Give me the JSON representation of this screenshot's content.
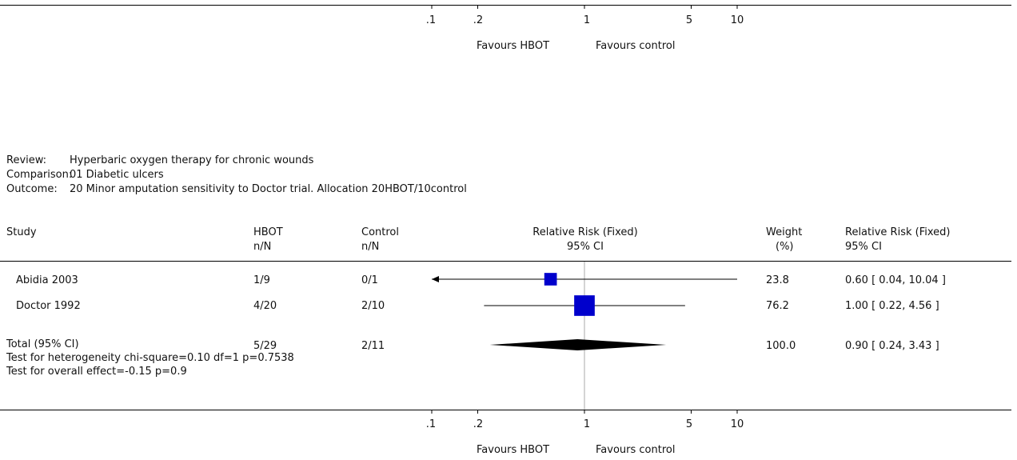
{
  "top_axis": {
    "ticks": [
      ".1",
      ".2",
      "1",
      "5",
      "10"
    ],
    "favours_left": "Favours HBOT",
    "favours_right": "Favours control"
  },
  "header": {
    "review_label": "Review:",
    "review_value": "Hyperbaric oxygen therapy for chronic wounds",
    "comparison_label": "Comparison:",
    "comparison_value": "01 Diabetic ulcers",
    "outcome_label": "Outcome:",
    "outcome_value": "20 Minor amputation sensitivity to Doctor trial. Allocation 20HBOT/10control"
  },
  "columns": {
    "study": "Study",
    "hbot": "HBOT",
    "hbot_sub": "n/N",
    "control": "Control",
    "control_sub": "n/N",
    "rr": "Relative Risk (Fixed)",
    "rr_sub": "95% CI",
    "weight": "Weight",
    "weight_sub": "(%)",
    "rr2": "Relative Risk (Fixed)",
    "rr2_sub": "95% CI"
  },
  "rows": [
    {
      "study": "Abidia 2003",
      "hbot": "1/9",
      "control": "0/1",
      "weight": "23.8",
      "ci": "0.60 [ 0.04, 10.04 ]"
    },
    {
      "study": "Doctor 1992",
      "hbot": "4/20",
      "control": "2/10",
      "weight": "76.2",
      "ci": "1.00 [ 0.22, 4.56 ]"
    }
  ],
  "total": {
    "label": "Total (95% CI)",
    "hbot": "5/29",
    "control": "2/11",
    "weight": "100.0",
    "ci": "0.90 [ 0.24, 3.43 ]",
    "heterogeneity": "Test for heterogeneity chi-square=0.10 df=1 p=0.7538",
    "overall": "Test for overall effect=-0.15 p=0.9"
  },
  "bottom_axis": {
    "ticks": [
      ".1",
      ".2",
      "1",
      "5",
      "10"
    ],
    "favours_left": "Favours HBOT",
    "favours_right": "Favours control"
  },
  "chart_data": {
    "type": "forest",
    "scale": "log",
    "xlim": [
      0.1,
      10
    ],
    "reference_line": 1,
    "studies": [
      {
        "name": "Abidia 2003",
        "rr": 0.6,
        "lower": 0.04,
        "upper": 10.04,
        "weight": 23.8,
        "lower_truncated": true
      },
      {
        "name": "Doctor 1992",
        "rr": 1.0,
        "lower": 0.22,
        "upper": 4.56,
        "weight": 76.2
      }
    ],
    "pooled": {
      "rr": 0.9,
      "lower": 0.24,
      "upper": 3.43
    },
    "colors": {
      "marker": "#0000cc",
      "diamond": "#000000",
      "reference": "#aaaaaa"
    }
  }
}
